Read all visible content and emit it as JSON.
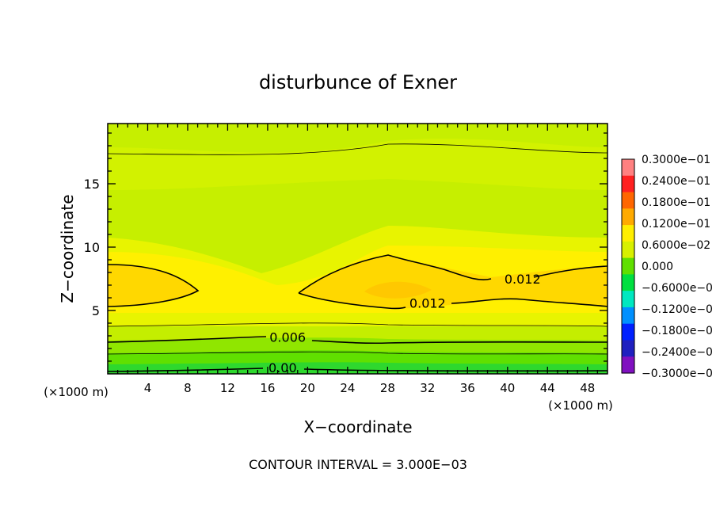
{
  "chart_data": {
    "type": "heatmap",
    "title": "disturbunce of Exner",
    "xlabel": "X−coordinate",
    "ylabel": "Z−coordinate",
    "x_unit": "(×1000 m)",
    "y_unit": "(×1000 m)",
    "xlim": [
      0,
      50
    ],
    "ylim": [
      0,
      19.75
    ],
    "x_ticks": [
      "4",
      "8",
      "12",
      "16",
      "20",
      "24",
      "28",
      "32",
      "36",
      "40",
      "44",
      "48"
    ],
    "y_ticks": [
      "5",
      "10",
      "15"
    ],
    "footer": "CONTOUR INTERVAL = 3.000E−03",
    "contour_interval": 0.003,
    "contour_labels": [
      {
        "text": "0.012",
        "x": 41.5,
        "z": 7.5
      },
      {
        "text": "0.012",
        "x": 32.0,
        "z": 5.6
      },
      {
        "text": "0.006",
        "x": 18.0,
        "z": 2.9
      },
      {
        "text": "0.00",
        "x": 17.5,
        "z": 0.5
      }
    ],
    "colorbar": {
      "labels": [
        "0.3000e−01",
        "0.2400e−01",
        "0.1800e−01",
        "0.1200e−01",
        "0.6000e−02",
        "0.000",
        "−0.6000e−0",
        "−0.1200e−0",
        "−0.1800e−0",
        "−0.2400e−0",
        "−0.3000e−0"
      ],
      "colors": [
        "#ff8080",
        "#ff2020",
        "#ff6600",
        "#ffaa00",
        "#ffee00",
        "#d8f000",
        "#60e000",
        "#00e040",
        "#00e8c0",
        "#0090ff",
        "#0020ff",
        "#2020c0",
        "#8010c0"
      ]
    }
  }
}
